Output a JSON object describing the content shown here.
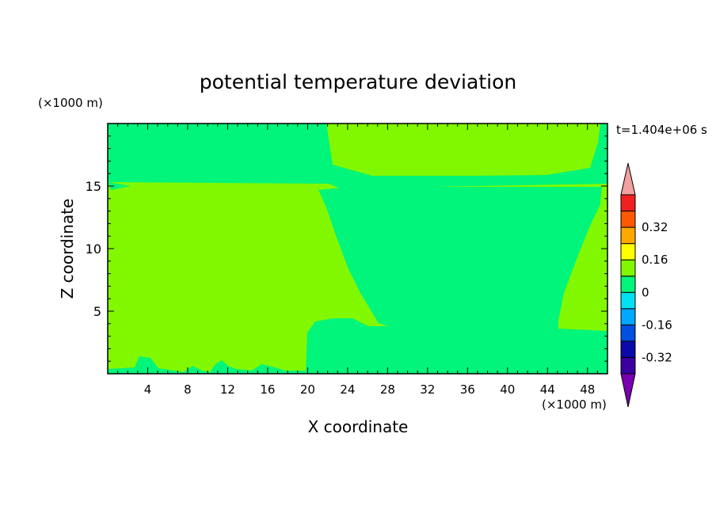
{
  "chart_data": {
    "type": "heatmap",
    "title": "potential temperature deviation",
    "xlabel": "X coordinate",
    "ylabel": "Z coordinate",
    "x_unit": "(×1000 m)",
    "y_unit": "(×1000 m)",
    "time_label": "t=1.404e+06 s",
    "xlim": [
      0,
      50
    ],
    "ylim": [
      0,
      20
    ],
    "x_ticks": [
      "4",
      "8",
      "12",
      "16",
      "20",
      "24",
      "28",
      "32",
      "36",
      "40",
      "44",
      "48"
    ],
    "y_ticks": [
      "5",
      "10",
      "15"
    ],
    "colorbar": {
      "levels": [
        {
          "color": "#7a00b0",
          "range": "below -0.40"
        },
        {
          "color": "#3a00a0",
          "range": "-0.40 to -0.32"
        },
        {
          "color": "#0a0aa8",
          "range": "-0.32 to -0.24"
        },
        {
          "color": "#0050e0",
          "range": "-0.24 to -0.16"
        },
        {
          "color": "#00a8ff",
          "range": "-0.16 to -0.08"
        },
        {
          "color": "#00e0f0",
          "range": "-0.08 to 0"
        },
        {
          "color": "#00f57a",
          "range": "0 to 0.08"
        },
        {
          "color": "#82f800",
          "range": "0.08 to 0.16"
        },
        {
          "color": "#ffff00",
          "range": "0.16 to 0.24"
        },
        {
          "color": "#ffa800",
          "range": "0.24 to 0.32"
        },
        {
          "color": "#ff5800",
          "range": "0.32 to 0.40"
        },
        {
          "color": "#f02020",
          "range": "0.40 to 0.48"
        },
        {
          "color": "#f4a0a0",
          "range": "above 0.48"
        }
      ],
      "tick_labels": [
        "0.32",
        "0.16",
        "0",
        "-0.16",
        "-0.32"
      ]
    },
    "regions": [
      {
        "description": "upper layer above about 15 km west of x=20",
        "value_class": "0 to 0.08"
      },
      {
        "description": "upper layer above about 15 km east of x=22",
        "value_class": "0.08 to 0.16"
      },
      {
        "description": "lower domain west of x=20",
        "value_class": "0.08 to 0.16"
      },
      {
        "description": "lower domain east of x=20, funnel and bumps",
        "value_class": "0 to 0.08"
      }
    ]
  }
}
